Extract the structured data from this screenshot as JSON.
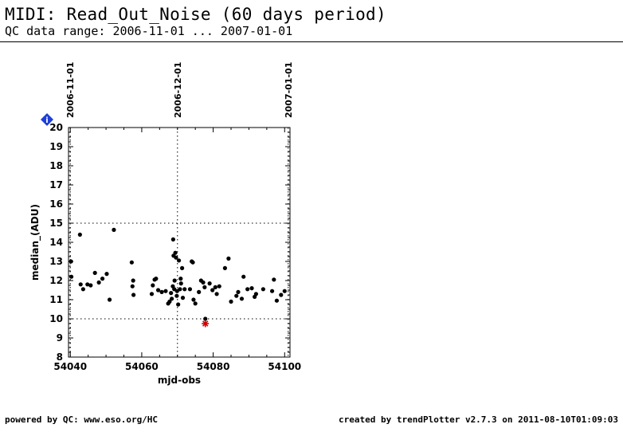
{
  "header": {
    "title": "MIDI: Read_Out_Noise (60 days period)",
    "subtitle": "QC data range: 2006-11-01 ... 2007-01-01"
  },
  "footer": {
    "left": "powered by QC: www.eso.org/HC",
    "right": "created by trendPlotter v2.7.3 on 2011-08-10T01:09:03"
  },
  "info_badge": {
    "label": "i",
    "color": "#1f3fd6"
  },
  "chart_data": {
    "type": "scatter",
    "xlabel": "mjd-obs",
    "ylabel": "median_(ADU)",
    "xlim": [
      54039.5,
      54101.5
    ],
    "ylim": [
      8,
      20
    ],
    "x_ticks": [
      54040,
      54060,
      54080,
      54100
    ],
    "y_ticks": [
      8,
      9,
      10,
      11,
      12,
      13,
      14,
      15,
      16,
      17,
      18,
      19,
      20
    ],
    "date_markers": [
      {
        "label": "2006-11-01",
        "x": 54040
      },
      {
        "label": "2006-12-01",
        "x": 54070
      },
      {
        "label": "2007-01-01",
        "x": 54101
      }
    ],
    "reference_lines_y": [
      10,
      15
    ],
    "grid": false,
    "point_color": "#000000",
    "outlier_color": "#cc0000",
    "series": [
      {
        "points": [
          [
            54040.2,
            13.0
          ],
          [
            54040.3,
            12.2
          ],
          [
            54042.7,
            14.4
          ],
          [
            54042.9,
            11.8
          ],
          [
            54043.6,
            11.55
          ],
          [
            54044.8,
            11.8
          ],
          [
            54045.7,
            11.75
          ],
          [
            54046.9,
            12.4
          ],
          [
            54048.0,
            11.9
          ],
          [
            54049.0,
            12.1
          ],
          [
            54050.2,
            12.35
          ],
          [
            54051.0,
            11.0
          ],
          [
            54052.2,
            14.65
          ],
          [
            54057.2,
            12.95
          ],
          [
            54057.4,
            11.7
          ],
          [
            54057.6,
            12.0
          ],
          [
            54057.7,
            11.25
          ],
          [
            54062.8,
            11.3
          ],
          [
            54063.1,
            11.75
          ],
          [
            54063.6,
            12.05
          ],
          [
            54064.0,
            12.1
          ],
          [
            54064.6,
            11.5
          ],
          [
            54065.6,
            11.4
          ],
          [
            54066.7,
            11.45
          ],
          [
            54067.4,
            10.8
          ],
          [
            54067.8,
            10.9
          ],
          [
            54068.2,
            11.35
          ],
          [
            54068.4,
            11.05
          ],
          [
            54068.7,
            11.7
          ],
          [
            54068.8,
            14.15
          ],
          [
            54068.9,
            13.3
          ],
          [
            54069.1,
            11.55
          ],
          [
            54069.2,
            12.0
          ],
          [
            54069.4,
            13.45
          ],
          [
            54069.6,
            13.2
          ],
          [
            54069.8,
            11.2
          ],
          [
            54069.9,
            11.45
          ],
          [
            54070.2,
            10.75
          ],
          [
            54070.4,
            13.05
          ],
          [
            54070.7,
            11.55
          ],
          [
            54070.9,
            12.1
          ],
          [
            54071.0,
            11.85
          ],
          [
            54071.3,
            12.65
          ],
          [
            54071.5,
            11.1
          ],
          [
            54072.0,
            11.55
          ],
          [
            54073.5,
            11.55
          ],
          [
            54074.0,
            13.0
          ],
          [
            54074.3,
            12.95
          ],
          [
            54074.5,
            11.0
          ],
          [
            54075.0,
            10.8
          ],
          [
            54076.0,
            11.4
          ],
          [
            54076.6,
            12.0
          ],
          [
            54077.2,
            11.9
          ],
          [
            54077.6,
            11.65
          ],
          [
            54079.0,
            11.85
          ],
          [
            54079.8,
            11.5
          ],
          [
            54080.6,
            11.65
          ],
          [
            54081.0,
            11.3
          ],
          [
            54081.7,
            11.7
          ],
          [
            54083.3,
            12.65
          ],
          [
            54084.3,
            13.15
          ],
          [
            54085.0,
            10.9
          ],
          [
            54086.5,
            11.2
          ],
          [
            54087.0,
            11.4
          ],
          [
            54088.0,
            11.05
          ],
          [
            54088.5,
            12.2
          ],
          [
            54089.6,
            11.55
          ],
          [
            54090.8,
            11.6
          ],
          [
            54091.6,
            11.15
          ],
          [
            54092.0,
            11.3
          ],
          [
            54094.0,
            11.55
          ],
          [
            54096.5,
            11.45
          ],
          [
            54097.0,
            12.05
          ],
          [
            54097.8,
            10.95
          ],
          [
            54099.0,
            11.25
          ],
          [
            54100.0,
            11.45
          ],
          [
            54077.8,
            10.0
          ]
        ]
      }
    ],
    "outliers": [
      {
        "x": 54077.8,
        "y": 9.75,
        "marker": "star"
      }
    ]
  }
}
